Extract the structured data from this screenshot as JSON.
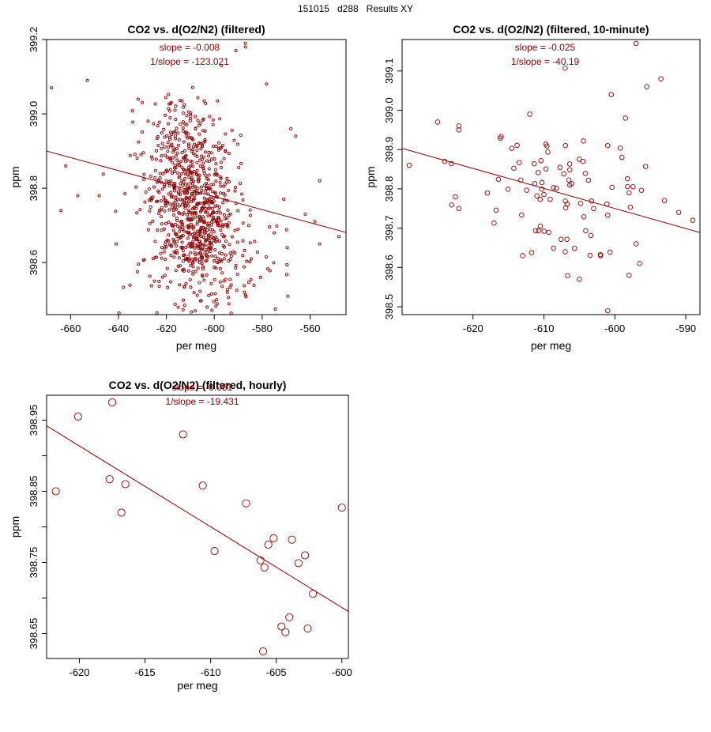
{
  "page": {
    "title": "151015   d288   Results XY"
  },
  "colors": {
    "series": "#8b0000",
    "axis": "#000000",
    "background": "#ffffff"
  },
  "chart_data": [
    {
      "type": "scatter",
      "title": "CO2 vs. d(O2/N2) (filtered)",
      "xlabel": "per meg",
      "ylabel": "ppm",
      "xlim": [
        -670,
        -545
      ],
      "ylim": [
        398.46,
        399.2
      ],
      "xticks": [
        -660,
        -640,
        -620,
        -600,
        -580,
        -560
      ],
      "yticks": [
        398.6,
        398.8,
        399.0,
        399.2
      ],
      "ytick_labels": [
        "398.6",
        "398.8",
        "399.0",
        "399.2"
      ],
      "marker_size": "small",
      "annotations": [
        "slope = -0.008",
        "1/slope = -123.021"
      ],
      "fit_line": {
        "slope": -0.00175,
        "x": [
          -670,
          -545
        ],
        "y": [
          398.9,
          398.681
        ]
      },
      "clusters": [
        {
          "center": [
            -610,
            398.8
          ],
          "spread": [
            9,
            0.08
          ],
          "n": 380
        },
        {
          "center": [
            -606,
            398.66
          ],
          "spread": [
            7,
            0.05
          ],
          "n": 240
        },
        {
          "center": [
            -615,
            398.94
          ],
          "spread": [
            8,
            0.06
          ],
          "n": 120
        },
        {
          "center": [
            -603,
            398.6
          ],
          "spread": [
            15,
            0.14
          ],
          "n": 220
        }
      ],
      "points": [
        {
          "x": -668,
          "y": 399.07
        },
        {
          "x": -653,
          "y": 399.09
        },
        {
          "x": -662,
          "y": 398.86
        },
        {
          "x": -664,
          "y": 398.74
        },
        {
          "x": -657,
          "y": 398.78
        },
        {
          "x": -641,
          "y": 398.65
        },
        {
          "x": -648,
          "y": 398.78
        },
        {
          "x": -587,
          "y": 399.18
        },
        {
          "x": -587,
          "y": 399.19
        },
        {
          "x": -591,
          "y": 399.17
        },
        {
          "x": -597,
          "y": 399.13
        },
        {
          "x": -568,
          "y": 398.96
        },
        {
          "x": -566,
          "y": 398.94
        },
        {
          "x": -571,
          "y": 398.77
        },
        {
          "x": -575,
          "y": 398.68
        },
        {
          "x": -556,
          "y": 398.82
        },
        {
          "x": -558,
          "y": 398.71
        },
        {
          "x": -556,
          "y": 398.65
        },
        {
          "x": -548,
          "y": 398.67
        },
        {
          "x": -562,
          "y": 398.73
        },
        {
          "x": -608,
          "y": 398.47
        },
        {
          "x": -603,
          "y": 398.48
        },
        {
          "x": -599,
          "y": 398.5
        },
        {
          "x": -625,
          "y": 398.55
        }
      ]
    },
    {
      "type": "scatter",
      "title": "CO2 vs. d(O2/N2) (filtered, 10-minute)",
      "xlabel": "per meg",
      "ylabel": "ppm",
      "xlim": [
        -630,
        -588
      ],
      "ylim": [
        398.48,
        399.18
      ],
      "xticks": [
        -620,
        -610,
        -600,
        -590
      ],
      "yticks": [
        398.5,
        398.6,
        398.7,
        398.8,
        398.9,
        399.0,
        399.1
      ],
      "ytick_labels": [
        "398.5",
        "398.6",
        "398.7",
        "398.8",
        "398.9",
        "399.0",
        "399.1"
      ],
      "marker_size": "medium",
      "annotations": [
        "slope = -0.025",
        "1/slope = -40.19"
      ],
      "fit_line": {
        "slope": -0.00509,
        "x": [
          -630,
          -588
        ],
        "y": [
          398.903,
          398.689
        ]
      },
      "clusters": [
        {
          "center": [
            -608,
            398.79
          ],
          "spread": [
            6,
            0.09
          ],
          "n": 80
        }
      ],
      "points": [
        {
          "x": -597,
          "y": 399.17
        },
        {
          "x": -593.5,
          "y": 399.08
        },
        {
          "x": -595.5,
          "y": 399.06
        },
        {
          "x": -600.5,
          "y": 399.04
        },
        {
          "x": -598.5,
          "y": 398.98
        },
        {
          "x": -629,
          "y": 398.86
        },
        {
          "x": -625,
          "y": 398.97
        },
        {
          "x": -624,
          "y": 398.87
        },
        {
          "x": -622,
          "y": 398.96
        },
        {
          "x": -622,
          "y": 398.95
        },
        {
          "x": -612,
          "y": 398.99
        },
        {
          "x": -601,
          "y": 398.91
        },
        {
          "x": -599,
          "y": 398.88
        },
        {
          "x": -593,
          "y": 398.77
        },
        {
          "x": -591,
          "y": 398.74
        },
        {
          "x": -589,
          "y": 398.72
        },
        {
          "x": -598,
          "y": 398.79
        },
        {
          "x": -601,
          "y": 398.49
        },
        {
          "x": -605,
          "y": 398.57
        },
        {
          "x": -598,
          "y": 398.58
        },
        {
          "x": -596.5,
          "y": 398.61
        },
        {
          "x": -597,
          "y": 398.66
        },
        {
          "x": -613,
          "y": 398.63
        },
        {
          "x": -607,
          "y": 398.64
        },
        {
          "x": -602,
          "y": 398.63
        },
        {
          "x": -622,
          "y": 398.75
        }
      ]
    },
    {
      "type": "scatter",
      "title": "CO2 vs. d(O2/N2) (filtered, hourly)",
      "xlabel": "per meg",
      "ylabel": "ppm",
      "xlim": [
        -622.5,
        -599.5
      ],
      "ylim": [
        398.615,
        398.985
      ],
      "xticks": [
        -620,
        -615,
        -610,
        -605,
        -600
      ],
      "yticks": [
        398.65,
        398.75,
        398.85,
        398.95
      ],
      "ytick_labels": [
        "398.65",
        "398.75",
        "398.85",
        "398.95"
      ],
      "minor_yticks": [
        398.7,
        398.8,
        398.9
      ],
      "marker_size": "large",
      "annotations": [
        "slope = -0.051",
        "1/slope = -19.431"
      ],
      "fit_line": {
        "slope": -0.01133,
        "x": [
          -622.5,
          -599.5
        ],
        "y": [
          398.942,
          398.681
        ]
      },
      "clusters": [],
      "points": [
        {
          "x": -621.8,
          "y": 398.85
        },
        {
          "x": -620.1,
          "y": 398.955
        },
        {
          "x": -617.5,
          "y": 398.975
        },
        {
          "x": -617.7,
          "y": 398.867
        },
        {
          "x": -616.5,
          "y": 398.86
        },
        {
          "x": -616.8,
          "y": 398.82
        },
        {
          "x": -612.1,
          "y": 398.93
        },
        {
          "x": -610.6,
          "y": 398.858
        },
        {
          "x": -609.7,
          "y": 398.766
        },
        {
          "x": -607.3,
          "y": 398.833
        },
        {
          "x": -606.2,
          "y": 398.753
        },
        {
          "x": -605.9,
          "y": 398.743
        },
        {
          "x": -605.6,
          "y": 398.775
        },
        {
          "x": -605.2,
          "y": 398.784
        },
        {
          "x": -603.8,
          "y": 398.782
        },
        {
          "x": -602.8,
          "y": 398.76
        },
        {
          "x": -603.3,
          "y": 398.749
        },
        {
          "x": -602.2,
          "y": 398.706
        },
        {
          "x": -604.0,
          "y": 398.673
        },
        {
          "x": -604.6,
          "y": 398.66
        },
        {
          "x": -604.3,
          "y": 398.652
        },
        {
          "x": -602.6,
          "y": 398.657
        },
        {
          "x": -606.0,
          "y": 398.625
        },
        {
          "x": -600.0,
          "y": 398.827
        }
      ]
    }
  ]
}
